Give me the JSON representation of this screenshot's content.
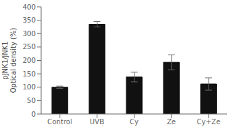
{
  "chart_data": {
    "type": "bar",
    "ylabel": "pJNK1/JNK1\nOptical density (%)",
    "categories": [
      "Control",
      "UVB",
      "Cy",
      "Ze",
      "Cy+Ze"
    ],
    "values": [
      100,
      335,
      138,
      193,
      112
    ],
    "errors": [
      4,
      10,
      18,
      28,
      23
    ],
    "color": "#111111",
    "ylim": [
      0,
      400
    ],
    "yticks": [
      0,
      50,
      100,
      150,
      200,
      250,
      300,
      350,
      400
    ],
    "grid": false
  }
}
